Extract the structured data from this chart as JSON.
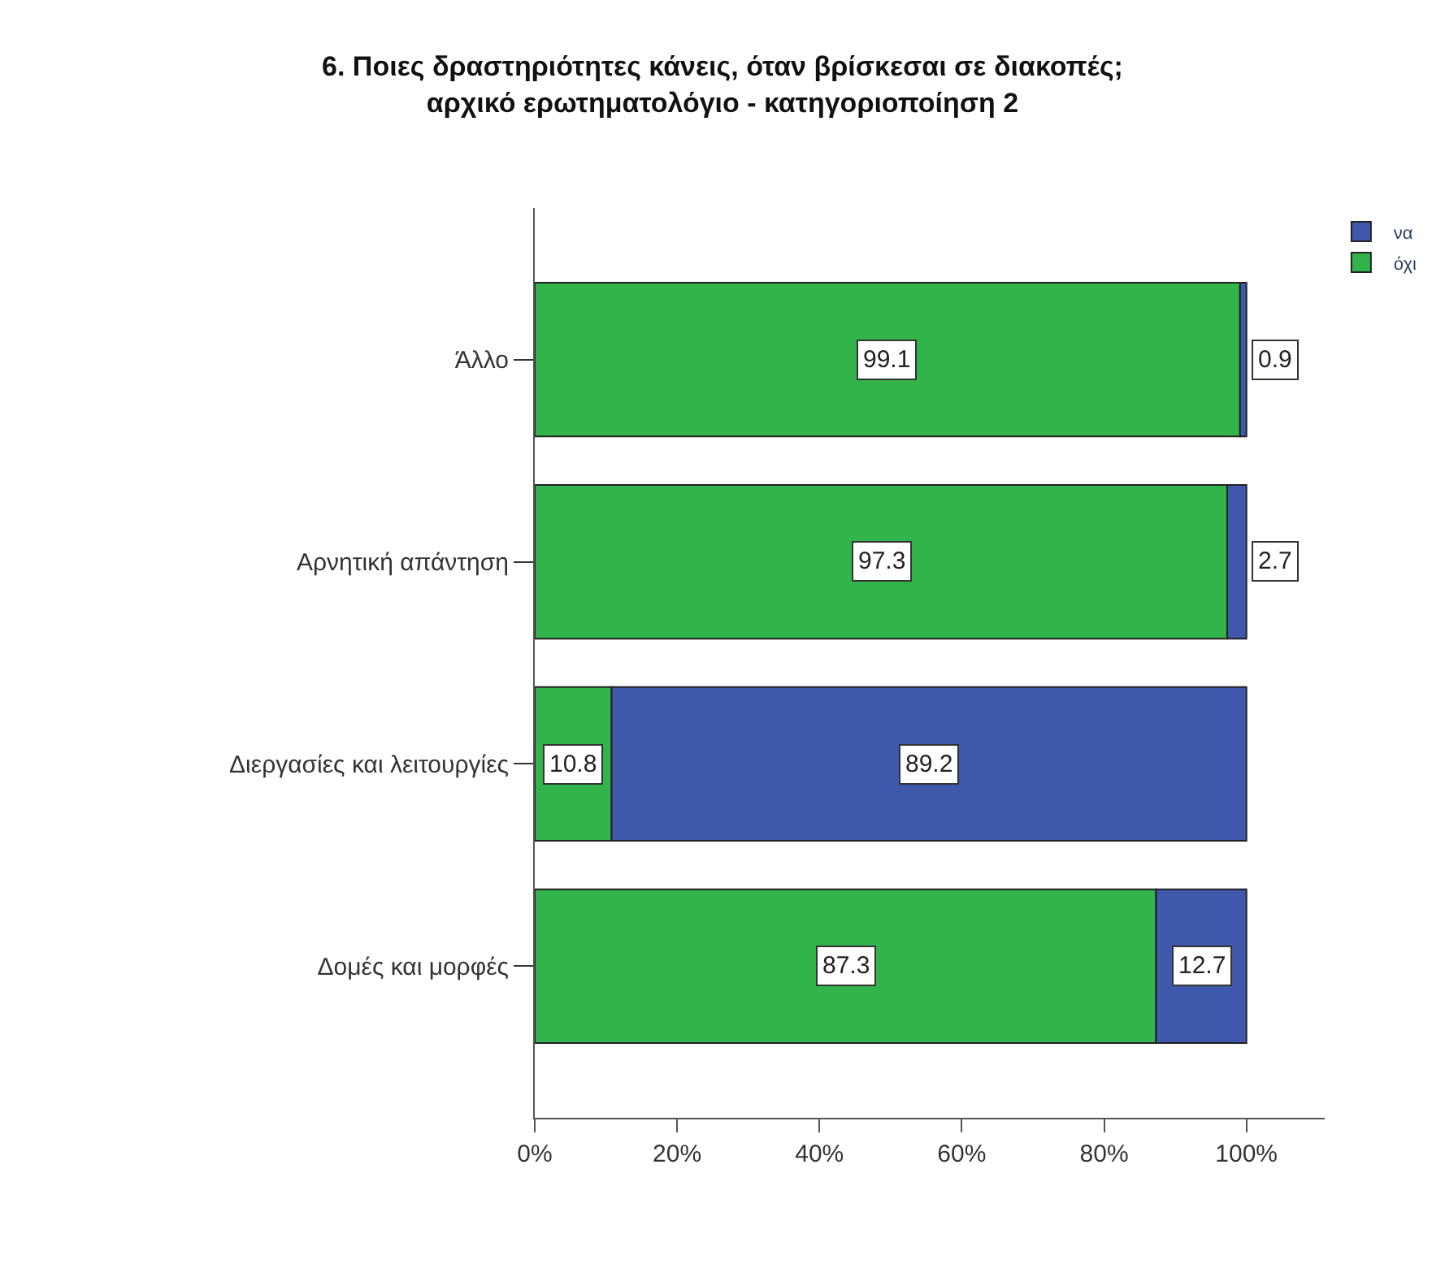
{
  "chart_data": {
    "type": "bar",
    "orientation": "horizontal",
    "stacked": true,
    "title": "6. Ποιες δραστηριότητες κάνεις, όταν βρίσκεσαι σε διακοπές;\nαρχικό ερωτηματολόγιο - κατηγοριοποίηση 2",
    "categories": [
      "Άλλο",
      "Αρνητική απάντηση",
      "Διεργασίες και λειτουργίες",
      "Δομές και μορφές"
    ],
    "series": [
      {
        "name": "όχι",
        "color": "#33b44a",
        "values": [
          99.1,
          97.3,
          10.8,
          87.3
        ]
      },
      {
        "name": "να",
        "color": "#3e58ac",
        "values": [
          0.9,
          2.7,
          89.2,
          12.7
        ]
      }
    ],
    "xlim": [
      0,
      111
    ],
    "xticks": [
      {
        "value": 0,
        "label": "0%"
      },
      {
        "value": 20,
        "label": "20%"
      },
      {
        "value": 40,
        "label": "40%"
      },
      {
        "value": 60,
        "label": "60%"
      },
      {
        "value": 80,
        "label": "80%"
      },
      {
        "value": 100,
        "label": "100%"
      }
    ],
    "data_labels": true,
    "legend": "top right"
  }
}
